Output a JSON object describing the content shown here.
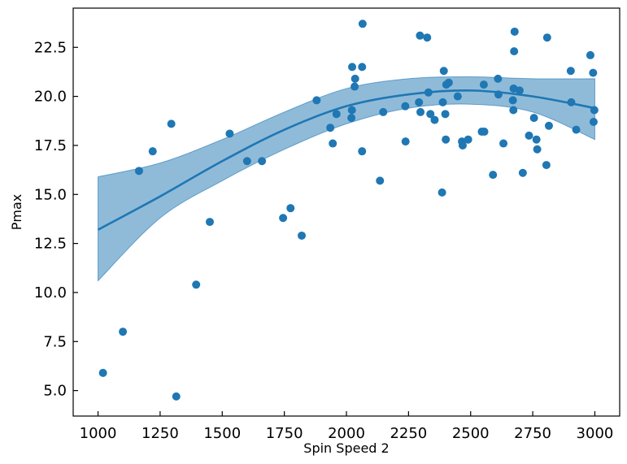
{
  "chart_data": {
    "type": "scatter",
    "xlabel": "Spin Speed 2",
    "ylabel": "Pmax",
    "xlim": [
      900,
      3100
    ],
    "ylim": [
      3.7,
      24.5
    ],
    "xticks": [
      1000,
      1250,
      1500,
      1750,
      2000,
      2250,
      2500,
      2750,
      3000
    ],
    "yticks": [
      5.0,
      7.5,
      10.0,
      12.5,
      15.0,
      17.5,
      20.0,
      22.5
    ],
    "grid": false,
    "colors": {
      "points": "#1f77b4",
      "fit_line": "#1f77b4",
      "band": "#1f77b4"
    },
    "series": [
      {
        "kind": "scatter",
        "points": [
          [
            1020,
            5.9
          ],
          [
            1100,
            8.0
          ],
          [
            1165,
            16.2
          ],
          [
            1220,
            17.2
          ],
          [
            1295,
            18.6
          ],
          [
            1315,
            4.7
          ],
          [
            1395,
            10.4
          ],
          [
            1450,
            13.6
          ],
          [
            1530,
            18.1
          ],
          [
            1600,
            16.7
          ],
          [
            1660,
            16.7
          ],
          [
            1745,
            13.8
          ],
          [
            1775,
            14.3
          ],
          [
            1820,
            12.9
          ],
          [
            1880,
            19.8
          ],
          [
            1935,
            18.4
          ],
          [
            1945,
            17.6
          ],
          [
            1960,
            19.1
          ],
          [
            2020,
            18.9
          ],
          [
            2022,
            19.3
          ],
          [
            2023,
            21.5
          ],
          [
            2033,
            20.5
          ],
          [
            2035,
            20.9
          ],
          [
            2063,
            21.5
          ],
          [
            2063,
            17.2
          ],
          [
            2065,
            23.7
          ],
          [
            2135,
            15.7
          ],
          [
            2148,
            19.2
          ],
          [
            2237,
            19.5
          ],
          [
            2238,
            17.7
          ],
          [
            2292,
            19.7
          ],
          [
            2296,
            23.1
          ],
          [
            2298,
            19.2
          ],
          [
            2325,
            23.0
          ],
          [
            2330,
            20.2
          ],
          [
            2338,
            19.1
          ],
          [
            2355,
            18.8
          ],
          [
            2385,
            15.1
          ],
          [
            2388,
            19.7
          ],
          [
            2392,
            21.3
          ],
          [
            2398,
            19.1
          ],
          [
            2400,
            17.8
          ],
          [
            2402,
            20.6
          ],
          [
            2412,
            20.7
          ],
          [
            2448,
            20.0
          ],
          [
            2465,
            17.7
          ],
          [
            2468,
            17.5
          ],
          [
            2490,
            17.8
          ],
          [
            2545,
            18.2
          ],
          [
            2555,
            18.2
          ],
          [
            2553,
            20.6
          ],
          [
            2590,
            16.0
          ],
          [
            2610,
            20.9
          ],
          [
            2612,
            20.1
          ],
          [
            2632,
            17.6
          ],
          [
            2670,
            19.8
          ],
          [
            2672,
            19.3
          ],
          [
            2673,
            20.4
          ],
          [
            2675,
            22.3
          ],
          [
            2677,
            23.3
          ],
          [
            2697,
            20.3
          ],
          [
            2710,
            16.1
          ],
          [
            2735,
            18.0
          ],
          [
            2755,
            18.9
          ],
          [
            2765,
            17.8
          ],
          [
            2768,
            17.3
          ],
          [
            2805,
            16.5
          ],
          [
            2808,
            23.0
          ],
          [
            2815,
            18.5
          ],
          [
            2903,
            21.3
          ],
          [
            2905,
            19.7
          ],
          [
            2925,
            18.3
          ],
          [
            2982,
            22.1
          ],
          [
            2993,
            21.2
          ],
          [
            2995,
            18.7
          ],
          [
            2998,
            19.3
          ]
        ]
      },
      {
        "kind": "fit",
        "x": [
          1000,
          1250,
          1500,
          1750,
          2000,
          2250,
          2500,
          2750,
          3000
        ],
        "y": [
          13.2,
          14.9,
          16.7,
          18.3,
          19.5,
          20.1,
          20.3,
          20.0,
          19.4
        ],
        "lower": [
          10.6,
          13.8,
          15.7,
          17.3,
          18.6,
          19.4,
          19.6,
          19.2,
          17.8
        ],
        "upper": [
          15.9,
          16.6,
          17.8,
          19.2,
          20.4,
          20.9,
          21.0,
          20.9,
          20.9
        ]
      }
    ]
  }
}
